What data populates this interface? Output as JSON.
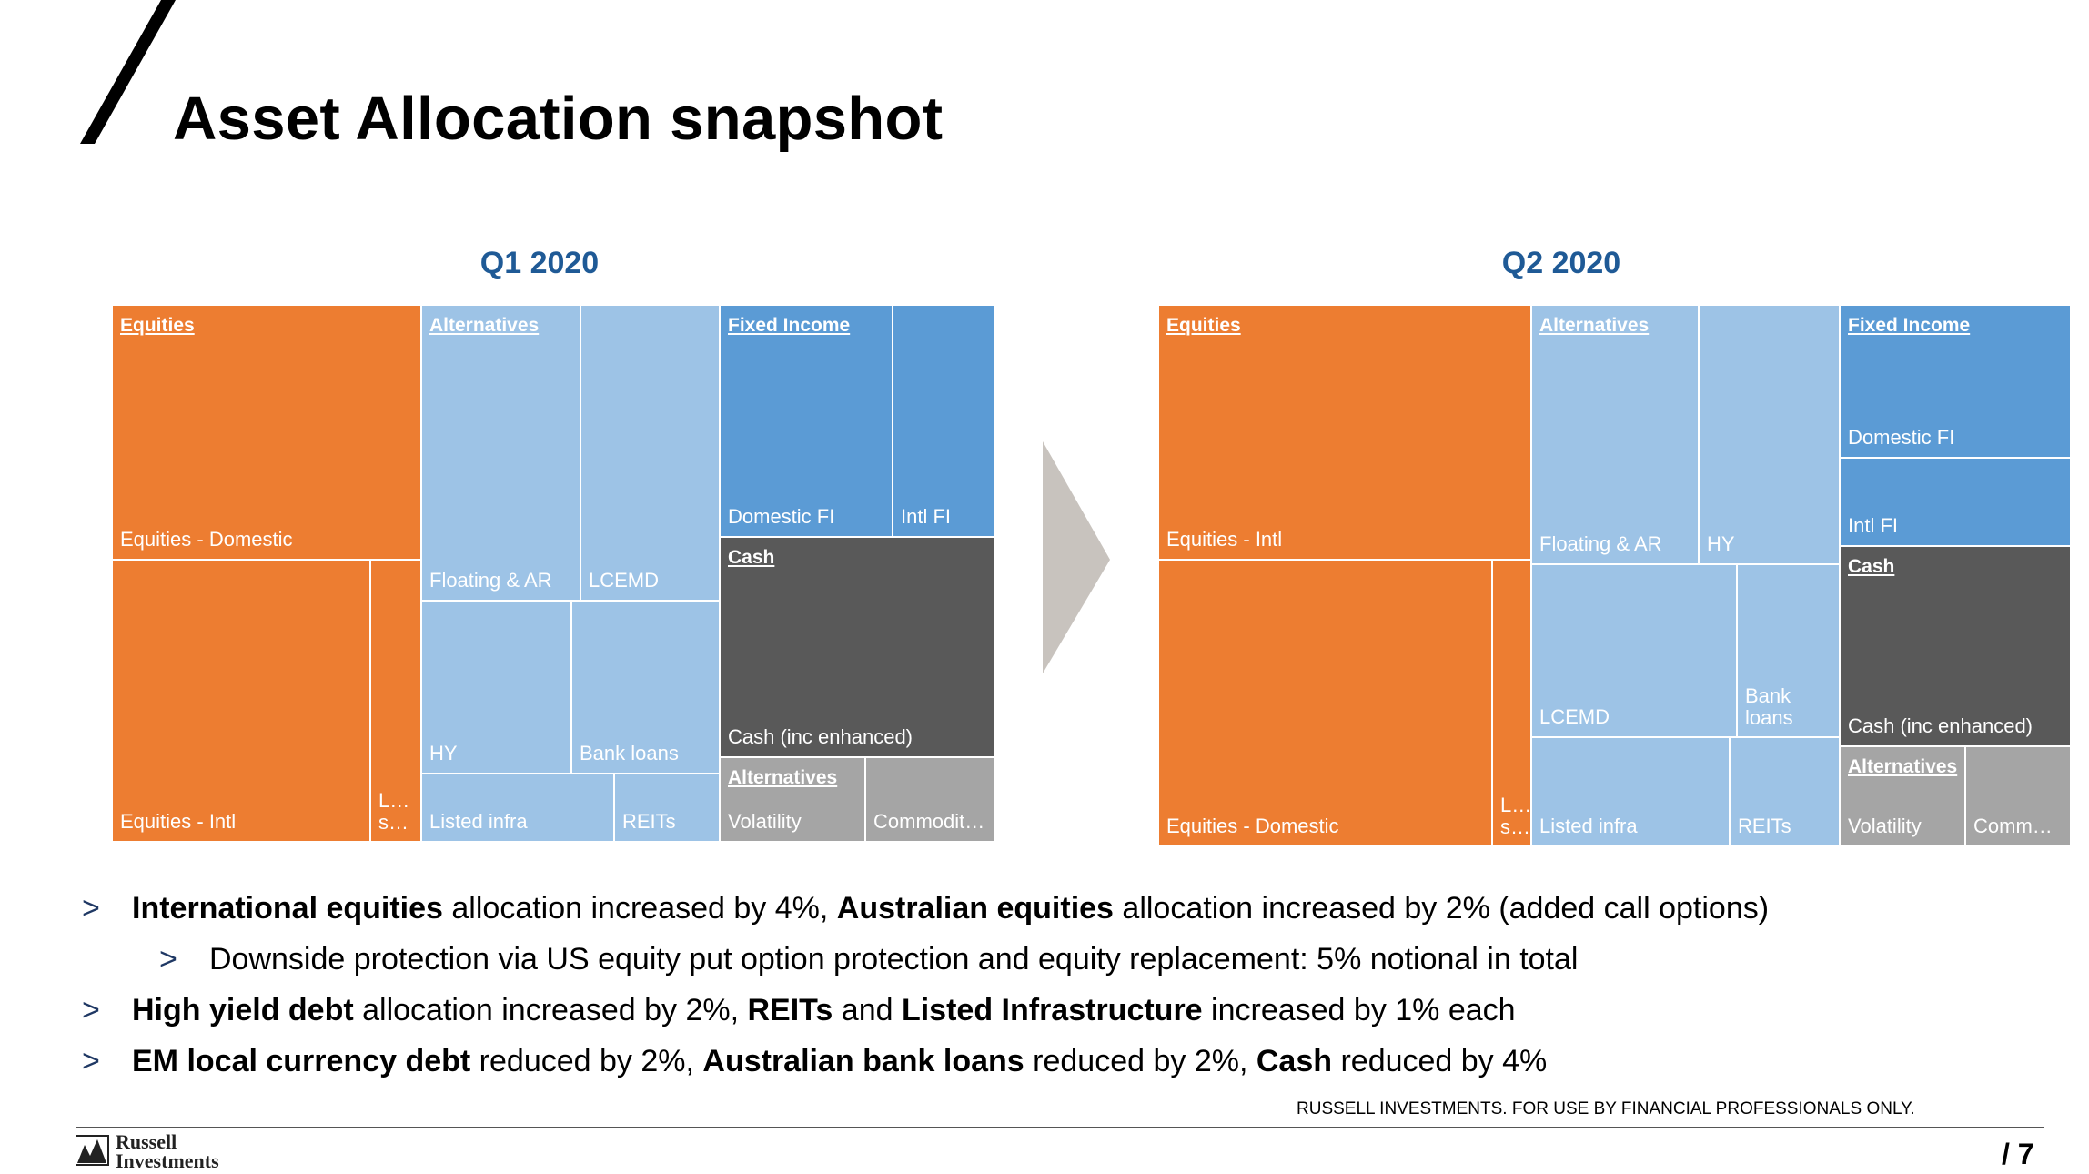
{
  "slide": {
    "title": "Asset Allocation snapshot",
    "page_number": "/ 7",
    "disclaimer": "RUSSELL INVESTMENTS.  FOR USE BY FINANCIAL PROFESSIONALS ONLY.",
    "logo_line1": "Russell",
    "logo_line2": "Investments"
  },
  "colors": {
    "equities": "#ed7d31",
    "alternatives": "#9dc3e6",
    "fixed_income": "#5b9bd5",
    "cash": "#595959",
    "alternatives_other": "#a5a5a5",
    "quarter_label": "#1f5a96"
  },
  "q1": {
    "label": "Q1 2020",
    "group_equities": "Equities",
    "group_alternatives": "Alternatives",
    "group_fixed_income": "Fixed Income",
    "group_cash": "Cash",
    "group_alternatives_2": "Alternatives",
    "eq_domestic": "Equities - Domestic",
    "eq_intl": "Equities - Intl",
    "eq_small": "L… s…",
    "floating": "Floating & AR",
    "lcemd": "LCEMD",
    "hy": "HY",
    "bank_loans": "Bank loans",
    "listed_infra": "Listed infra",
    "reits": "REITs",
    "domestic_fi": "Domestic FI",
    "intl_fi": "Intl FI",
    "cash": "Cash (inc enhanced)",
    "volatility": "Volatility",
    "commodities": "Commodit…"
  },
  "q2": {
    "label": "Q2 2020",
    "group_equities": "Equities",
    "group_alternatives": "Alternatives",
    "group_fixed_income": "Fixed Income",
    "group_cash": "Cash",
    "group_alternatives_2": "Alternatives",
    "eq_intl": "Equities - Intl",
    "eq_domestic": "Equities - Domestic",
    "eq_small": "L… s…",
    "floating": "Floating & AR",
    "hy": "HY",
    "lcemd": "LCEMD",
    "bank_loans": "Bank loans",
    "listed_infra": "Listed infra",
    "reits": "REITs",
    "domestic_fi": "Domestic FI",
    "intl_fi": "Intl FI",
    "cash": "Cash (inc enhanced)",
    "volatility": "Volatility",
    "commodities": "Comm…"
  },
  "bullets": [
    {
      "b1": "International equities",
      "t1": " allocation increased by 4%, ",
      "b2": "Australian equities",
      "t2": " allocation increased by 2% (added call options)"
    },
    {
      "t1": "Downside protection via US equity put option protection and equity replacement: 5% notional in total"
    },
    {
      "b1": "High yield debt",
      "t1": " allocation increased by 2%, ",
      "b2": "REITs",
      "t2": " and ",
      "b3": "Listed Infrastructure",
      "t3": " increased by 1% each"
    },
    {
      "b1": "EM local currency debt",
      "t1": " reduced by 2%, ",
      "b2": "Australian bank loans",
      "t2": " reduced by 2%, ",
      "b3": "Cash",
      "t3": " reduced by 4%"
    }
  ],
  "bullet_marker": ">"
}
